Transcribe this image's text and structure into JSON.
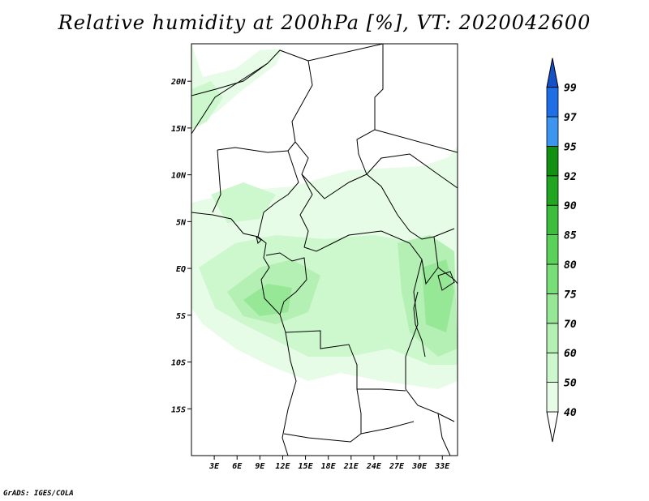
{
  "title": "Relative humidity at 200hPa [%], VT: 2020042600",
  "credit": "GrADS: IGES/COLA",
  "map": {
    "lon_range": [
      0,
      35
    ],
    "lat_range": [
      -20,
      24
    ],
    "lat_ticks": [
      {
        "value": 20,
        "label": "20N"
      },
      {
        "value": 15,
        "label": "15N"
      },
      {
        "value": 10,
        "label": "10N"
      },
      {
        "value": 5,
        "label": "5N"
      },
      {
        "value": 0,
        "label": "EQ"
      },
      {
        "value": -5,
        "label": "5S"
      },
      {
        "value": -10,
        "label": "10S"
      },
      {
        "value": -15,
        "label": "15S"
      }
    ],
    "lon_ticks": [
      {
        "value": 3,
        "label": "3E"
      },
      {
        "value": 6,
        "label": "6E"
      },
      {
        "value": 9,
        "label": "9E"
      },
      {
        "value": 12,
        "label": "12E"
      },
      {
        "value": 15,
        "label": "15E"
      },
      {
        "value": 18,
        "label": "18E"
      },
      {
        "value": 21,
        "label": "21E"
      },
      {
        "value": 24,
        "label": "24E"
      },
      {
        "value": 27,
        "label": "27E"
      },
      {
        "value": 30,
        "label": "30E"
      },
      {
        "value": 33,
        "label": "33E"
      }
    ]
  },
  "colorbar": {
    "levels": [
      {
        "label": "40",
        "color": "#ffffff"
      },
      {
        "label": "50",
        "color": "#e6fce6"
      },
      {
        "label": "60",
        "color": "#cdf7cd"
      },
      {
        "label": "70",
        "color": "#b4f0b4"
      },
      {
        "label": "75",
        "color": "#96e896"
      },
      {
        "label": "80",
        "color": "#78de78"
      },
      {
        "label": "85",
        "color": "#5ad25a"
      },
      {
        "label": "90",
        "color": "#3cbe3c"
      },
      {
        "label": "92",
        "color": "#22a622"
      },
      {
        "label": "95",
        "color": "#129012"
      },
      {
        "label": "97",
        "color": "#3c96f0"
      },
      {
        "label": "99",
        "color": "#1e6ee6"
      }
    ],
    "top_color": "#1450c8"
  }
}
